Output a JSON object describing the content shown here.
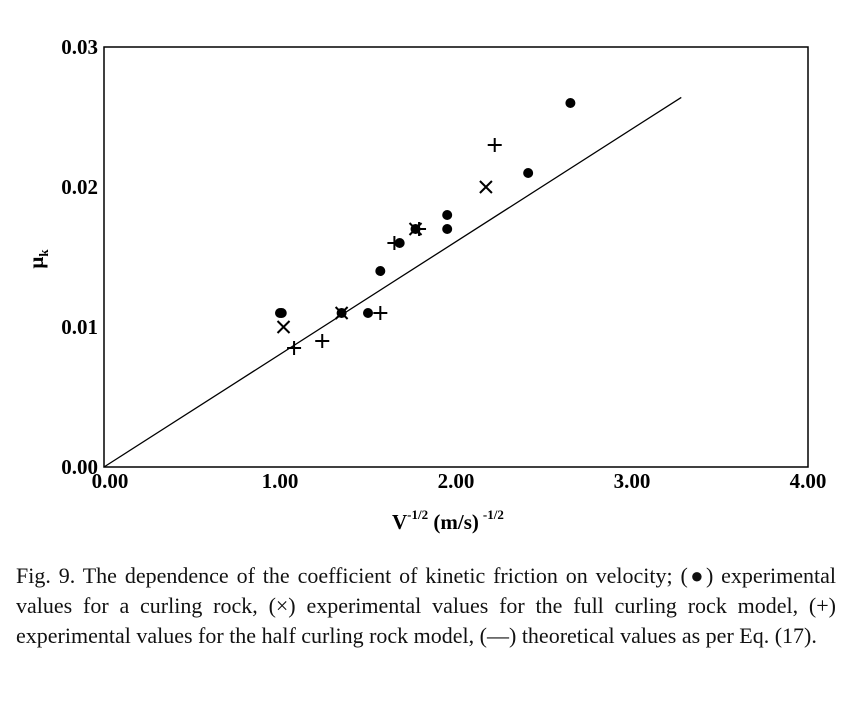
{
  "chart_data": {
    "type": "scatter",
    "xlabel": "V",
    "xlabel_sup": "-1/2",
    "xlabel_unit": "(m/s)",
    "xlabel_unit_sup": "-1/2",
    "ylabel": "μ",
    "ylabel_sub": "k",
    "xlim": [
      0,
      4
    ],
    "ylim": [
      0,
      0.03
    ],
    "x_ticks": [
      0,
      1,
      2,
      3,
      4
    ],
    "x_tick_labels": [
      "0.00",
      "1.00",
      "2.00",
      "3.00",
      "4.00"
    ],
    "y_ticks": [
      0,
      0.01,
      0.02,
      0.03
    ],
    "y_tick_labels": [
      "0.00",
      "0.01",
      "0.02",
      "0.03"
    ],
    "grid": false,
    "series": [
      {
        "marker": "dot",
        "points": [
          [
            1.0,
            0.011
          ],
          [
            1.01,
            0.011
          ],
          [
            1.35,
            0.011
          ],
          [
            1.5,
            0.011
          ],
          [
            1.57,
            0.014
          ],
          [
            1.68,
            0.016
          ],
          [
            1.77,
            0.017
          ],
          [
            1.95,
            0.018
          ],
          [
            1.95,
            0.017
          ],
          [
            2.41,
            0.021
          ],
          [
            2.65,
            0.026
          ]
        ]
      },
      {
        "marker": "x",
        "points": [
          [
            1.02,
            0.01
          ],
          [
            1.35,
            0.011
          ],
          [
            1.77,
            0.017
          ],
          [
            2.17,
            0.02
          ]
        ]
      },
      {
        "marker": "plus",
        "points": [
          [
            1.08,
            0.0085
          ],
          [
            1.24,
            0.009
          ],
          [
            1.57,
            0.011
          ],
          [
            1.65,
            0.016
          ],
          [
            1.79,
            0.017
          ],
          [
            2.22,
            0.023
          ]
        ]
      },
      {
        "marker": "line",
        "points": [
          [
            0.0,
            0.0
          ],
          [
            3.28,
            0.0264
          ]
        ]
      }
    ]
  },
  "caption": "Fig. 9. The dependence of the coefficient of kinetic friction on velocity; (●) experimental values for a curling rock, (×) experimental values for the full curling rock model, (+) experimental values for the half curling rock model, (—) theoretical values as per Eq. (17)."
}
